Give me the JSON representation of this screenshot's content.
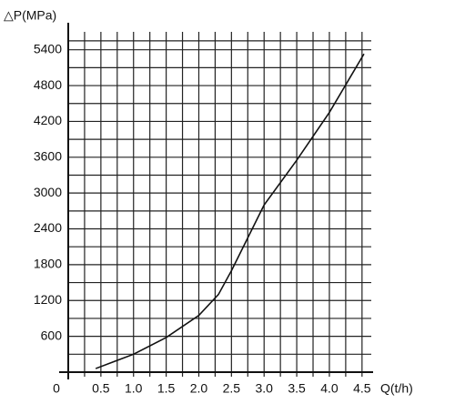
{
  "chart_data": {
    "type": "line",
    "y_label": "△P(MPa)",
    "x_label": "Q(t/h)",
    "series": [
      {
        "color": "#111111",
        "x": [
          0.42,
          1.0,
          1.5,
          2.0,
          2.3,
          2.5,
          3.0,
          3.5,
          4.0,
          4.53
        ],
        "values": [
          60,
          300,
          580,
          950,
          1300,
          1700,
          2800,
          3550,
          4350,
          5330
        ]
      }
    ],
    "xlim": [
      0,
      4.6
    ],
    "xticks": [
      0,
      0.5,
      {
        "value": 1.0,
        "label": "1.0"
      },
      1.5,
      {
        "value": 2.0,
        "label": "2.0"
      },
      2.5,
      {
        "value": 3.0,
        "label": "3.0"
      },
      3.5,
      {
        "value": 4.0,
        "label": "4.0"
      },
      4.5
    ],
    "ylim": [
      0,
      5700
    ],
    "yticks": [
      600,
      1200,
      1800,
      2400,
      3000,
      3600,
      4200,
      4800,
      5400
    ],
    "grid": true
  }
}
